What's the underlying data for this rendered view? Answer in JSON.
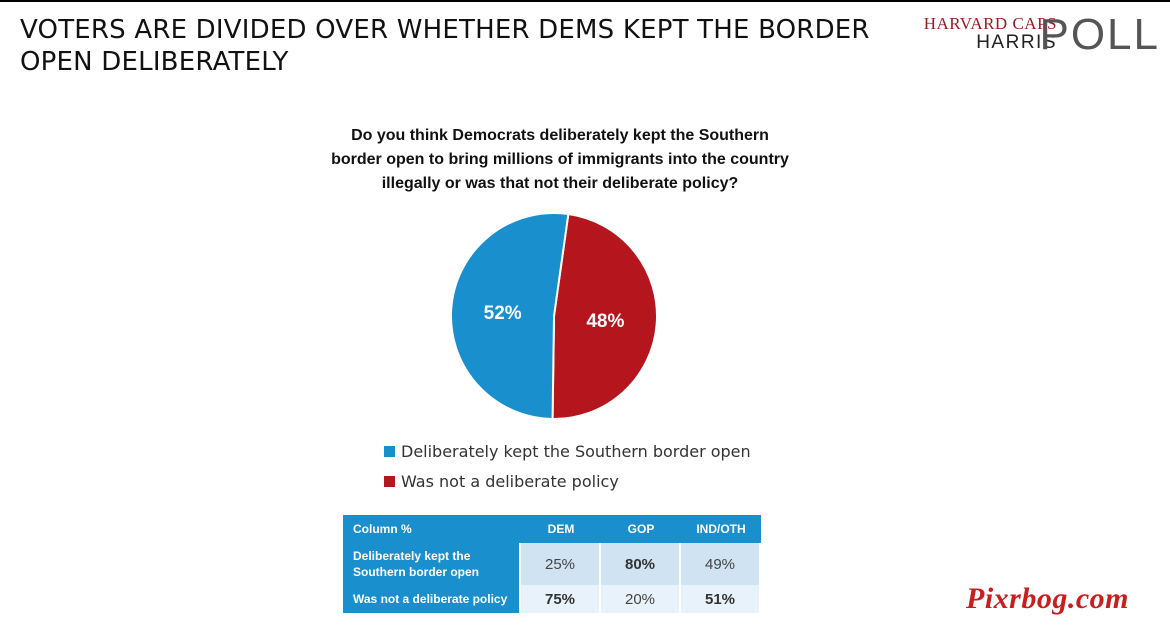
{
  "header": {
    "title": "VOTERS ARE DIVIDED OVER WHETHER DEMS KEPT THE BORDER OPEN DELIBERATELY"
  },
  "logo": {
    "line1": "HARVARD CAPS",
    "line2": "HARRIS",
    "line3": "POLL"
  },
  "question": "Do you think Democrats deliberately kept the Southern border open to bring millions of immigrants into the country illegally or was that not their deliberate policy?",
  "chart_data": {
    "type": "pie",
    "title": "Do you think Democrats deliberately kept the Southern border open to bring millions of immigrants into the country illegally or was that not their deliberate policy?",
    "categories": [
      "Deliberately kept the Southern border open",
      "Was not a deliberate policy"
    ],
    "values": [
      52,
      48
    ],
    "data_labels": [
      "52%",
      "48%"
    ],
    "colors": [
      "#1a8fcd",
      "#b5161d"
    ],
    "legend_position": "bottom"
  },
  "legend": {
    "items": [
      {
        "label": "Deliberately kept the Southern border open",
        "color": "#1a8fcd"
      },
      {
        "label": "Was not a deliberate policy",
        "color": "#b5161d"
      }
    ]
  },
  "table": {
    "header": [
      "Column %",
      "DEM",
      "GOP",
      "IND/OTH"
    ],
    "rows": [
      {
        "label_line1": "Deliberately kept the",
        "label_line2": "Southern border open",
        "values": [
          "25%",
          "80%",
          "49%"
        ]
      },
      {
        "label_line1": "Was not a deliberate policy",
        "label_line2": "",
        "values": [
          "75%",
          "20%",
          "51%"
        ]
      }
    ]
  },
  "watermark": "Pixrbog.com"
}
